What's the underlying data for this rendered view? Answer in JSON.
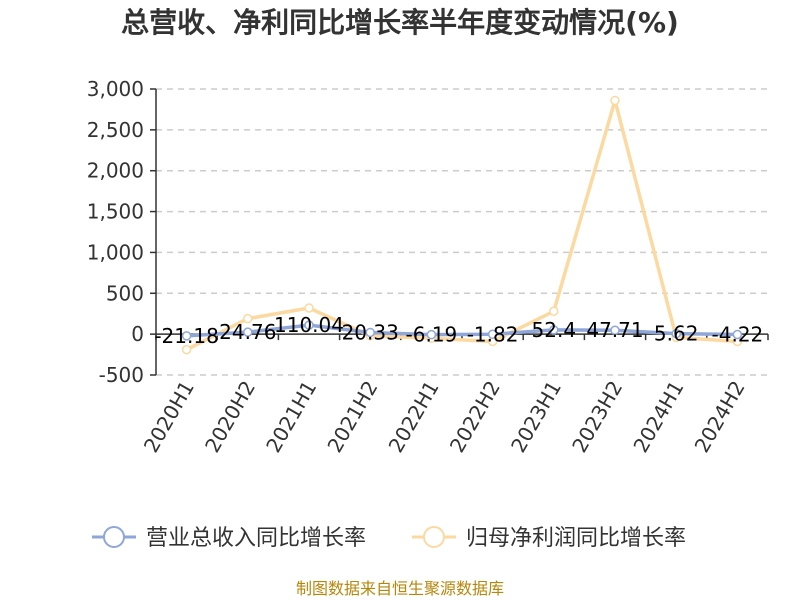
{
  "chart_data": {
    "type": "line",
    "title": "总营收、净利同比增长率半年度变动情况(%)",
    "categories": [
      "2020H1",
      "2020H2",
      "2021H1",
      "2021H2",
      "2022H1",
      "2022H2",
      "2023H1",
      "2023H2",
      "2024H1",
      "2024H2"
    ],
    "series": [
      {
        "name": "营业总收入同比增长率",
        "color": "#8ea6d8",
        "values": [
          -21.18,
          24.76,
          110.04,
          20.33,
          -6.19,
          -1.82,
          52.4,
          47.71,
          5.62,
          -4.22
        ],
        "labels": [
          "-21.18",
          "24.76",
          "110.04",
          "20.33",
          "-6.19",
          "-1.82",
          "52.4",
          "47.71",
          "5.62",
          "-4.22"
        ]
      },
      {
        "name": "归母净利润同比增长率",
        "color": "#fcd9a0",
        "values": [
          -190,
          190,
          320,
          -20,
          -50,
          -90,
          280,
          2860,
          -40,
          -90
        ]
      }
    ],
    "y_ticks": [
      "3,000",
      "2,500",
      "2,000",
      "1,500",
      "1,000",
      "500",
      "0",
      "-500"
    ],
    "ylim": [
      -500,
      3000
    ],
    "grid": true,
    "legend_position": "bottom"
  },
  "footer": {
    "source": "制图数据来自恒生聚源数据库"
  }
}
